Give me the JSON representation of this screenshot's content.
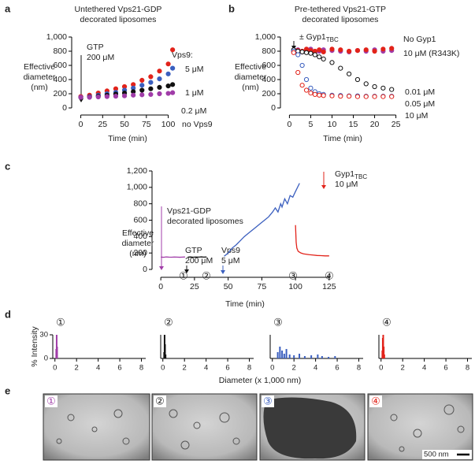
{
  "panel_labels": [
    "a",
    "b",
    "c",
    "d",
    "e"
  ],
  "chart_data": [
    {
      "type": "scatter",
      "title": [
        "Untethered Vps21-GDP",
        "decorated liposomes"
      ],
      "ylabel": [
        "Effective",
        "diameter",
        "(nm)"
      ],
      "xlabel": "Time (min)",
      "xlim": [
        -5,
        113
      ],
      "ylim": [
        0,
        1000
      ],
      "xticks": [
        0,
        25,
        50,
        75,
        100
      ],
      "yticks": [
        0,
        200,
        400,
        600,
        800,
        {
          "value": 1000,
          "label": "1,000"
        }
      ],
      "legend_title": "Vps9:",
      "annotations": [
        {
          "text": [
            "GTP",
            "200 μM"
          ]
        }
      ],
      "x": [
        0,
        10,
        20,
        30,
        40,
        50,
        60,
        70,
        80,
        90,
        100,
        105
      ],
      "series": [
        {
          "name": "5 μM",
          "color": "#e2231a",
          "marker": "filled",
          "values": [
            160,
            180,
            210,
            240,
            270,
            300,
            330,
            390,
            440,
            520,
            620,
            820
          ]
        },
        {
          "name": "1 μM",
          "color": "#3b5fbf",
          "marker": "filled",
          "values": [
            150,
            160,
            180,
            200,
            220,
            250,
            280,
            320,
            360,
            410,
            480,
            560
          ]
        },
        {
          "name": "0.2 μM",
          "color": "#111111",
          "marker": "filled",
          "values": [
            150,
            155,
            165,
            180,
            195,
            210,
            230,
            250,
            270,
            290,
            310,
            330
          ]
        },
        {
          "name": "no Vps9",
          "color": "#a03ca8",
          "marker": "filled",
          "values": [
            150,
            150,
            155,
            160,
            165,
            170,
            180,
            185,
            190,
            200,
            205,
            215
          ]
        }
      ]
    },
    {
      "type": "scatter",
      "title": [
        "Pre-tethered Vps21-GTP",
        "decorated liposomes"
      ],
      "ylabel": [
        "Effective",
        "diameter",
        "(nm)"
      ],
      "xlabel": "Time (min)",
      "xlim": [
        -1,
        26
      ],
      "ylim": [
        0,
        1000
      ],
      "xticks": [
        0,
        5,
        10,
        15,
        20,
        25
      ],
      "yticks": [
        0,
        200,
        400,
        600,
        800,
        {
          "value": 1000,
          "label": "1,000"
        }
      ],
      "annotations": [
        {
          "text": [
            "± Gyp1"
          ],
          "sub": "TBC"
        }
      ],
      "x": [
        1,
        2,
        3,
        4,
        5,
        6,
        7,
        8,
        10,
        12,
        14,
        16,
        18,
        20,
        22,
        24
      ],
      "series": [
        {
          "name": "No Gyp1",
          "color": "#a03ca8",
          "marker": "filled",
          "values": [
            800,
            820,
            790,
            810,
            830,
            790,
            800,
            820,
            810,
            800,
            790,
            810,
            800,
            820,
            800,
            810
          ]
        },
        {
          "name": "10 μM (R343K)",
          "color": "#e2231a",
          "marker": "filled",
          "values": [
            790,
            810,
            800,
            830,
            810,
            800,
            820,
            790,
            830,
            820,
            800,
            810,
            820,
            800,
            830,
            840
          ]
        },
        {
          "name": "0.01 μM",
          "color": "#111111",
          "marker": "open",
          "values": [
            820,
            800,
            790,
            780,
            770,
            750,
            720,
            690,
            640,
            560,
            480,
            400,
            340,
            300,
            280,
            260
          ]
        },
        {
          "name": "0.05 μM",
          "color": "#3b5fbf",
          "marker": "open",
          "values": [
            800,
            750,
            600,
            400,
            280,
            230,
            200,
            190,
            180,
            175,
            170,
            170,
            165,
            165,
            165,
            165
          ]
        },
        {
          "name": "10 μM",
          "color": "#e2231a",
          "marker": "open",
          "values": [
            780,
            500,
            320,
            250,
            210,
            190,
            180,
            175,
            170,
            165,
            165,
            160,
            160,
            160,
            160,
            160
          ]
        }
      ]
    },
    {
      "type": "line",
      "ylabel": [
        "Effective",
        "diameter",
        "(nm)"
      ],
      "xlabel": "Time (min)",
      "xlim": [
        -3,
        128
      ],
      "ylim": [
        0,
        1200
      ],
      "xticks": [
        0,
        25,
        50,
        75,
        100,
        125
      ],
      "yticks": [
        0,
        200,
        400,
        600,
        800,
        {
          "value": 1000,
          "label": "1,000"
        },
        {
          "value": 1200,
          "label": "1,200"
        }
      ],
      "annotations": [
        {
          "text": [
            "Vps21-GDP",
            "decorated liposomes"
          ]
        },
        {
          "text": [
            "GTP",
            "200 μM"
          ]
        },
        {
          "text": [
            "Vps9",
            "5 μM"
          ]
        },
        {
          "text": [
            "Gyp1",
            "10 μM"
          ],
          "sub": "TBC"
        }
      ],
      "stage_labels": [
        "①",
        "②",
        "③",
        "④"
      ],
      "series": [
        {
          "color": "#a03ca8",
          "x": [
            0,
            2,
            4,
            6,
            8,
            10,
            12,
            14,
            16,
            18
          ],
          "values": [
            150,
            148,
            152,
            150,
            149,
            151,
            150,
            148,
            150,
            152
          ]
        },
        {
          "color": "#111111",
          "x": [
            20,
            22,
            24,
            26,
            28,
            30,
            32,
            34
          ],
          "values": [
            150,
            152,
            149,
            151,
            150,
            153,
            150,
            152
          ]
        },
        {
          "color": "#3b5fbf",
          "x": [
            47,
            50,
            53,
            56,
            59,
            62,
            65,
            68,
            71,
            74,
            77,
            80,
            83,
            85,
            87,
            89,
            90,
            92,
            94,
            96,
            98,
            100,
            103
          ],
          "values": [
            160,
            200,
            260,
            300,
            350,
            400,
            440,
            480,
            520,
            560,
            600,
            640,
            700,
            750,
            700,
            800,
            760,
            860,
            800,
            900,
            880,
            950,
            1050
          ]
        },
        {
          "color": "#e2231a",
          "x": [
            100,
            100.5,
            101,
            102,
            104,
            106,
            108,
            110,
            113,
            116,
            119,
            122,
            125
          ],
          "values": [
            540,
            330,
            260,
            220,
            200,
            190,
            185,
            180,
            175,
            170,
            168,
            165,
            165
          ]
        }
      ]
    },
    {
      "type": "bar",
      "label": "①",
      "color": "#a03ca8",
      "ylabel": "% Intensity",
      "xlim": [
        -0.2,
        8.4
      ],
      "ylim": [
        0,
        30
      ],
      "xticks": [
        0,
        2,
        4,
        6,
        8
      ],
      "yticks": [
        0,
        30
      ],
      "x": [
        0.12,
        0.16,
        0.2
      ],
      "values": [
        12,
        30,
        15
      ]
    },
    {
      "type": "bar",
      "label": "②",
      "color": "#111111",
      "xlim": [
        -0.2,
        8.4
      ],
      "ylim": [
        0,
        30
      ],
      "xticks": [
        0,
        2,
        4,
        6,
        8
      ],
      "x": [
        0.12,
        0.16,
        0.2,
        0.25
      ],
      "values": [
        8,
        30,
        18,
        5
      ]
    },
    {
      "type": "bar",
      "label": "③",
      "color": "#3b5fbf",
      "xlabel": "Diameter (x 1,000 nm)",
      "xlim": [
        -0.2,
        8.4
      ],
      "ylim": [
        0,
        30
      ],
      "xticks": [
        0,
        2,
        4,
        6,
        8
      ],
      "x": [
        0.5,
        0.7,
        0.9,
        1.1,
        1.3,
        1.6,
        2.0,
        2.5,
        3.0,
        3.6,
        4.2,
        4.6,
        5.2,
        5.8
      ],
      "values": [
        8,
        15,
        10,
        6,
        12,
        5,
        4,
        6,
        3,
        4,
        5,
        3,
        2,
        3
      ]
    },
    {
      "type": "bar",
      "label": "④",
      "color": "#e2231a",
      "xlim": [
        -0.2,
        8.4
      ],
      "ylim": [
        0,
        30
      ],
      "xticks": [
        0,
        2,
        4,
        6,
        8
      ],
      "x": [
        0.12,
        0.16,
        0.2,
        0.25,
        0.3
      ],
      "values": [
        10,
        26,
        30,
        15,
        5
      ]
    }
  ],
  "micrographs": {
    "labels": [
      "①",
      "②",
      "③",
      "④"
    ],
    "scale_bar": "500 nm"
  }
}
